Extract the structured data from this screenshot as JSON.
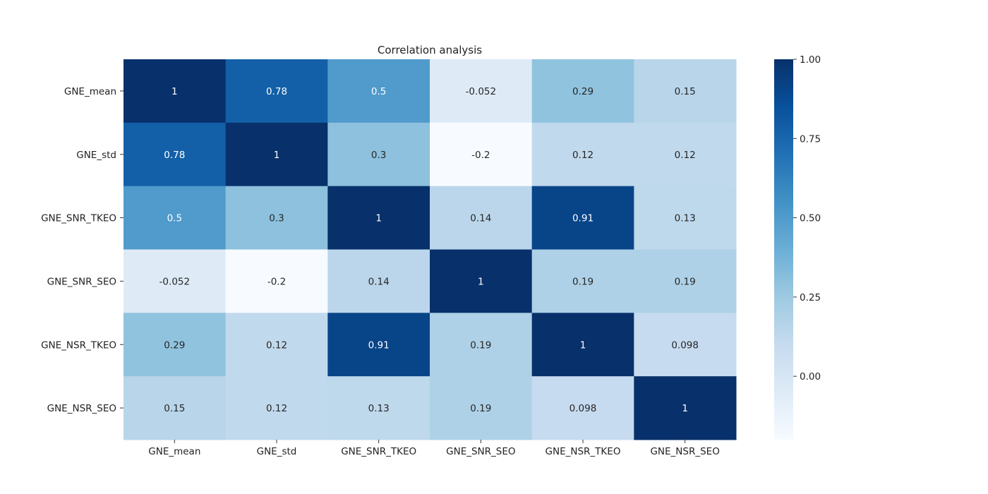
{
  "chart_data": {
    "type": "heatmap",
    "title": "Correlation analysis",
    "xlabel": "",
    "ylabel": "",
    "rows": [
      "GNE_mean",
      "GNE_std",
      "GNE_SNR_TKEO",
      "GNE_SNR_SEO",
      "GNE_NSR_TKEO",
      "GNE_NSR_SEO"
    ],
    "columns": [
      "GNE_mean",
      "GNE_std",
      "GNE_SNR_TKEO",
      "GNE_SNR_SEO",
      "GNE_NSR_TKEO",
      "GNE_NSR_SEO"
    ],
    "values": [
      [
        1,
        0.78,
        0.5,
        -0.052,
        0.29,
        0.15
      ],
      [
        0.78,
        1,
        0.3,
        -0.2,
        0.12,
        0.12
      ],
      [
        0.5,
        0.3,
        1,
        0.14,
        0.91,
        0.13
      ],
      [
        -0.052,
        -0.2,
        0.14,
        1,
        0.19,
        0.19
      ],
      [
        0.29,
        0.12,
        0.91,
        0.19,
        1,
        0.098
      ],
      [
        0.15,
        0.12,
        0.13,
        0.19,
        0.098,
        1
      ]
    ],
    "annotations": [
      [
        "1",
        "0.78",
        "0.5",
        "-0.052",
        "0.29",
        "0.15"
      ],
      [
        "0.78",
        "1",
        "0.3",
        "-0.2",
        "0.12",
        "0.12"
      ],
      [
        "0.5",
        "0.3",
        "1",
        "0.14",
        "0.91",
        "0.13"
      ],
      [
        "-0.052",
        "-0.2",
        "0.14",
        "1",
        "0.19",
        "0.19"
      ],
      [
        "0.29",
        "0.12",
        "0.91",
        "0.19",
        "1",
        "0.098"
      ],
      [
        "0.15",
        "0.12",
        "0.13",
        "0.19",
        "0.098",
        "1"
      ]
    ],
    "colormap": "Blues",
    "vmin": -0.2,
    "vmax": 1,
    "colorbar": {
      "ticks": [
        0.0,
        0.25,
        0.5,
        0.75,
        1.0
      ],
      "tick_labels": [
        "0.00",
        "0.25",
        "0.50",
        "0.75",
        "1.00"
      ],
      "placement": "right"
    },
    "grid": false
  }
}
